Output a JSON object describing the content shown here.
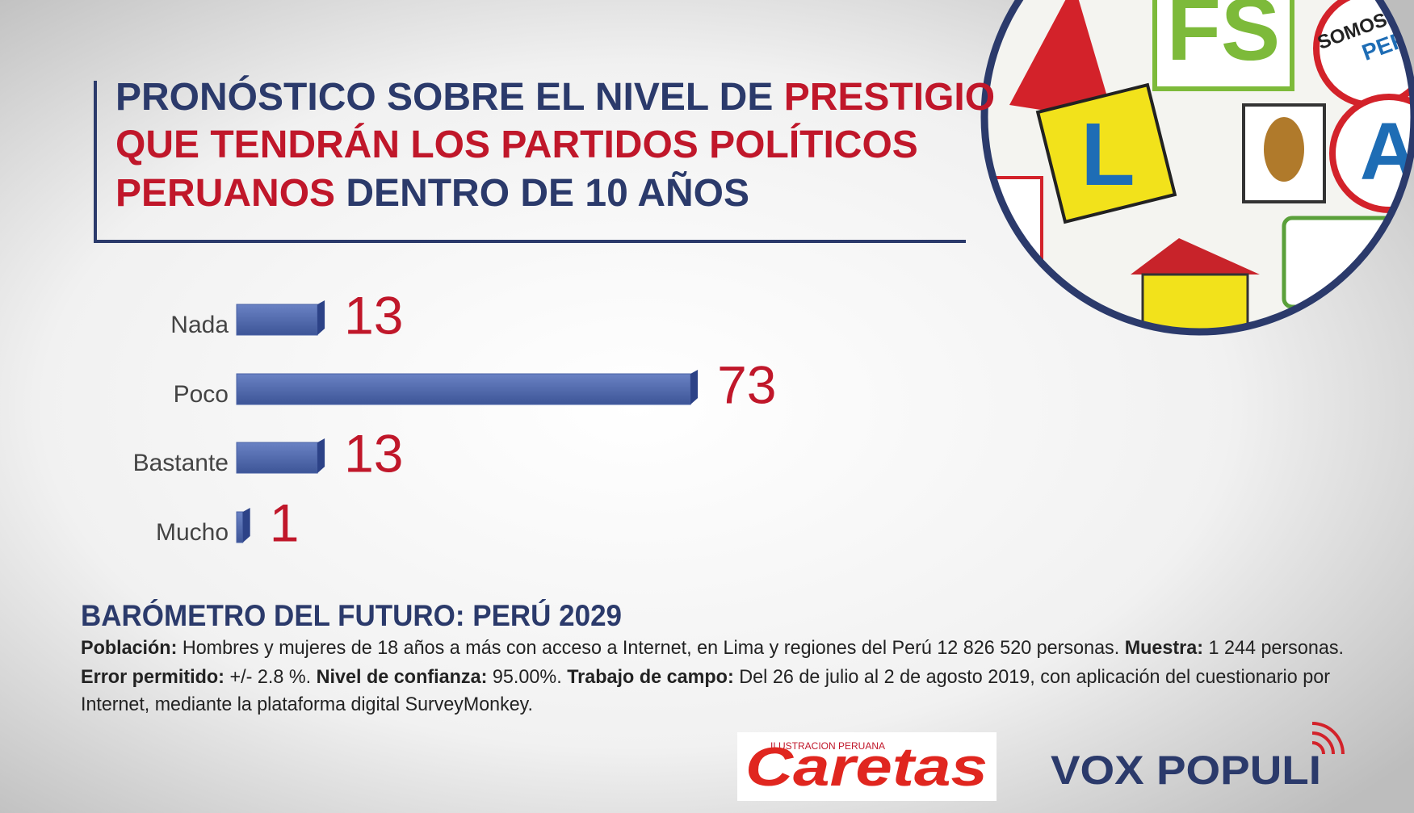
{
  "chart_data": {
    "type": "hbar",
    "title": [
      [
        {
          "text": "PRONÓSTICO SOBRE EL NIVEL DE ",
          "color": "#2b3a6b"
        },
        {
          "text": "PRESTIGIO",
          "color": "#c0172a"
        }
      ],
      [
        {
          "text": "QUE TENDRÁN LOS PARTIDOS POLÍTICOS",
          "color": "#c0172a"
        }
      ],
      [
        {
          "text": "PERUANOS",
          "color": "#c0172a"
        },
        {
          "text": " DENTRO DE 10 AÑOS",
          "color": "#2b3a6b"
        }
      ]
    ],
    "categories": [
      "Nada",
      "Poco",
      "Bastante",
      "Mucho"
    ],
    "values": [
      13,
      73,
      13,
      1
    ],
    "color": "#4a62a6",
    "value_label_color": "#c0172a",
    "xlim": [
      0,
      80
    ]
  },
  "footer": {
    "subtitle": "BARÓMETRO DEL FUTURO: PERÚ 2029",
    "notes": [
      [
        {
          "text": "Población:",
          "bold": true
        },
        {
          "text": " Hombres y mujeres de 18 años a más con acceso a Internet, en Lima y regiones del Perú 12 826 520 personas. ",
          "bold": false
        },
        {
          "text": "Muestra:",
          "bold": true
        },
        {
          "text": " 1 244 personas.",
          "bold": false
        }
      ],
      [
        {
          "text": "Error permitido:",
          "bold": true
        },
        {
          "text": " +/- 2.8 %. ",
          "bold": false
        },
        {
          "text": "Nivel de confianza:",
          "bold": true
        },
        {
          "text": " 95.00%. ",
          "bold": false
        },
        {
          "text": "Trabajo de campo:",
          "bold": true
        },
        {
          "text": " Del 26 de julio al 2 de agosto 2019, con aplicación del cuestionario por",
          "bold": false
        }
      ],
      [
        {
          "text": "Internet, mediante la plataforma digital SurveyMonkey.",
          "bold": false
        }
      ]
    ]
  },
  "logos": {
    "caretas_tagline": "ILUSTRACION PERUANA",
    "caretas": "Caretas",
    "vox_populi": "VOX POPULI"
  },
  "image_texts": {
    "fs": "FS",
    "l": "L",
    "somos": "SOMOS",
    "peru": "PERU",
    "a": "A"
  }
}
